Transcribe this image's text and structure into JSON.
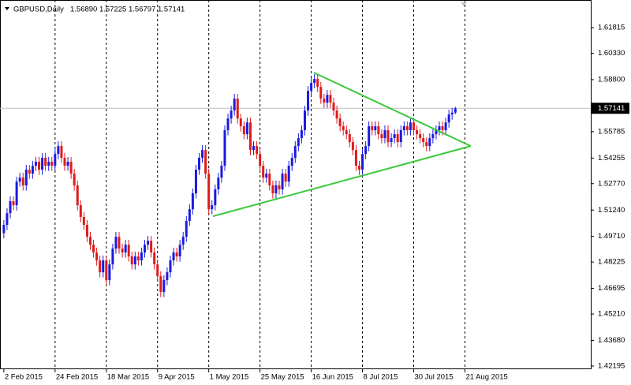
{
  "chart_data": {
    "type": "candlestick",
    "header": {
      "symbol": "GBPUSD,Daily",
      "open": "1.56890",
      "high": "1.57225",
      "low": "1.56797",
      "close": "1.57141"
    },
    "xlim": [
      -1.2,
      183.3
    ],
    "xticks": [
      {
        "value": 0,
        "label": "2 Feb 2015"
      },
      {
        "value": 16,
        "label": "24 Feb 2015"
      },
      {
        "value": 32,
        "label": "18 Mar 2015"
      },
      {
        "value": 48,
        "label": "9 Apr 2015"
      },
      {
        "value": 64,
        "label": "1 May 2015"
      },
      {
        "value": 80,
        "label": "25 May 2015"
      },
      {
        "value": 96,
        "label": "16 Jun 2015"
      },
      {
        "value": 112,
        "label": "8 Jul 2015"
      },
      {
        "value": 128,
        "label": "30 Jul 2015"
      },
      {
        "value": 144,
        "label": "21 Aug 2015"
      }
    ],
    "ylim": [
      1.4201,
      1.6342
    ],
    "yticks": [
      1.61815,
      {
        "value": 1.6033,
        "label": "1.60330"
      },
      {
        "value": 1.588,
        "label": "1.58800"
      },
      1.55785,
      1.54255,
      {
        "value": 1.5277,
        "label": "1.52770"
      },
      {
        "value": 1.5124,
        "label": "1.51240"
      },
      {
        "value": 1.4971,
        "label": "1.49710"
      },
      1.48225,
      1.46695,
      {
        "value": 1.4521,
        "label": "1.45210"
      },
      {
        "value": 1.4368,
        "label": "1.43680"
      },
      1.42195
    ],
    "grid": "x",
    "up_color": "#1a1ae0",
    "down_color": "#e01a1a",
    "current_price": {
      "value": 1.57141,
      "label": "1.57141"
    },
    "open": [
      1.499,
      1.5038,
      1.5106,
      1.5175,
      1.5152,
      1.5289,
      1.5312,
      1.5267,
      1.5358,
      1.5335,
      1.5381,
      1.5404,
      1.5358,
      1.5427,
      1.5381,
      1.5404,
      1.5381,
      1.5449,
      1.5495,
      1.5427,
      1.5381,
      1.5404,
      1.5335,
      1.5267,
      1.5152,
      1.5084,
      1.5038,
      1.4969,
      1.4923,
      1.4878,
      1.4832,
      1.4763,
      1.4832,
      1.4718,
      1.4809,
      1.4901,
      1.4969,
      1.4901,
      1.4878,
      1.4923,
      1.4855,
      1.4809,
      1.4855,
      1.4832,
      1.4878,
      1.4923,
      1.4946,
      1.4878,
      1.4809,
      1.4741,
      1.4649,
      1.4718,
      1.4763,
      1.4832,
      1.4878,
      1.4855,
      1.4923,
      1.4969,
      1.5061,
      1.5129,
      1.5221,
      1.5358,
      1.5427,
      1.5472,
      1.5335,
      1.5129,
      1.5152,
      1.5244,
      1.5312,
      1.5381,
      1.5587,
      1.5655,
      1.5701,
      1.577,
      1.5655,
      1.561,
      1.5564,
      1.5632,
      1.5472,
      1.5495,
      1.5449,
      1.5381,
      1.5312,
      1.5335,
      1.5267,
      1.5221,
      1.5267,
      1.5244,
      1.5335,
      1.5289,
      1.5381,
      1.5427,
      1.5495,
      1.5541,
      1.5587,
      1.5701,
      1.5815,
      1.5861,
      1.5884,
      1.5838,
      1.577,
      1.5747,
      1.5792,
      1.5747,
      1.5701,
      1.5655,
      1.561,
      1.5587,
      1.5564,
      1.5518,
      1.5472,
      1.5381,
      1.5358,
      1.5449,
      1.5495,
      1.561,
      1.5587,
      1.561,
      1.5564,
      1.5541,
      1.5587,
      1.5518,
      1.5541,
      1.5564,
      1.5518,
      1.5587,
      1.561,
      1.5587,
      1.5632,
      1.5587,
      1.5564,
      1.5541,
      1.5518,
      1.5495,
      1.5541,
      1.5564,
      1.5587,
      1.561,
      1.5587,
      1.5632,
      1.5678,
      1.5689
    ],
    "high": [
      1.5066,
      1.5134,
      1.5203,
      1.5203,
      1.5317,
      1.534,
      1.534,
      1.5386,
      1.5386,
      1.5409,
      1.5432,
      1.5432,
      1.5455,
      1.5455,
      1.5432,
      1.5432,
      1.5477,
      1.5523,
      1.5523,
      1.5455,
      1.5432,
      1.5432,
      1.5363,
      1.5295,
      1.518,
      1.5112,
      1.5066,
      1.4997,
      1.4951,
      1.4906,
      1.486,
      1.486,
      1.486,
      1.4837,
      1.4929,
      1.4997,
      1.4997,
      1.4929,
      1.4951,
      1.4951,
      1.4883,
      1.4883,
      1.4883,
      1.4906,
      1.4951,
      1.4974,
      1.4974,
      1.4906,
      1.4837,
      1.4769,
      1.4746,
      1.4791,
      1.486,
      1.4906,
      1.4906,
      1.4951,
      1.4997,
      1.5089,
      1.5157,
      1.5249,
      1.5386,
      1.5455,
      1.55,
      1.55,
      1.5363,
      1.518,
      1.5272,
      1.534,
      1.5409,
      1.5615,
      1.5683,
      1.5729,
      1.5798,
      1.5798,
      1.5683,
      1.5638,
      1.566,
      1.566,
      1.5523,
      1.5523,
      1.5477,
      1.5409,
      1.5363,
      1.5363,
      1.5295,
      1.5295,
      1.5295,
      1.5363,
      1.5363,
      1.5409,
      1.5455,
      1.5523,
      1.5569,
      1.5615,
      1.5729,
      1.5843,
      1.5889,
      1.5912,
      1.5912,
      1.5866,
      1.5798,
      1.582,
      1.582,
      1.5775,
      1.5729,
      1.5683,
      1.5638,
      1.5615,
      1.5592,
      1.5546,
      1.55,
      1.5409,
      1.5477,
      1.5523,
      1.5638,
      1.5638,
      1.5638,
      1.5638,
      1.5592,
      1.5615,
      1.5615,
      1.5569,
      1.5592,
      1.5592,
      1.5615,
      1.5638,
      1.5638,
      1.566,
      1.566,
      1.5615,
      1.5592,
      1.5569,
      1.5546,
      1.5569,
      1.5592,
      1.5615,
      1.5638,
      1.5638,
      1.566,
      1.5706,
      1.5717,
      1.57225
    ],
    "low": [
      1.496,
      1.5008,
      1.5076,
      1.5122,
      1.5122,
      1.5259,
      1.5237,
      1.5237,
      1.5305,
      1.5305,
      1.5351,
      1.5328,
      1.5328,
      1.5351,
      1.5351,
      1.5351,
      1.5351,
      1.5419,
      1.5397,
      1.5351,
      1.5351,
      1.5305,
      1.5237,
      1.5122,
      1.5054,
      1.5008,
      1.4939,
      1.4893,
      1.4848,
      1.4802,
      1.4733,
      1.4733,
      1.4688,
      1.4688,
      1.4779,
      1.4871,
      1.4871,
      1.4848,
      1.4848,
      1.4825,
      1.4779,
      1.4779,
      1.4802,
      1.4802,
      1.4848,
      1.4893,
      1.4848,
      1.4779,
      1.4711,
      1.4619,
      1.4619,
      1.4688,
      1.4733,
      1.4802,
      1.4825,
      1.4825,
      1.4893,
      1.4939,
      1.5031,
      1.5099,
      1.5191,
      1.5328,
      1.5397,
      1.5305,
      1.5099,
      1.5099,
      1.5122,
      1.5214,
      1.5282,
      1.5351,
      1.5557,
      1.5625,
      1.5671,
      1.5625,
      1.558,
      1.5534,
      1.5534,
      1.5442,
      1.5442,
      1.5419,
      1.5351,
      1.5282,
      1.5282,
      1.5237,
      1.5191,
      1.5191,
      1.5214,
      1.5214,
      1.5259,
      1.5259,
      1.5351,
      1.5397,
      1.5465,
      1.5511,
      1.5557,
      1.5671,
      1.5785,
      1.5831,
      1.5808,
      1.574,
      1.5717,
      1.5717,
      1.5717,
      1.5671,
      1.5625,
      1.558,
      1.5557,
      1.5534,
      1.5488,
      1.5442,
      1.5351,
      1.5328,
      1.5328,
      1.5419,
      1.5465,
      1.5557,
      1.5557,
      1.5534,
      1.5511,
      1.5511,
      1.5488,
      1.5488,
      1.5511,
      1.5488,
      1.5488,
      1.5557,
      1.5557,
      1.5557,
      1.5557,
      1.5534,
      1.5511,
      1.5488,
      1.5465,
      1.5465,
      1.5511,
      1.5534,
      1.5557,
      1.5557,
      1.5557,
      1.5602,
      1.5648,
      1.56797
    ],
    "close": [
      1.5038,
      1.5106,
      1.5175,
      1.5152,
      1.5289,
      1.5312,
      1.5267,
      1.5358,
      1.5335,
      1.5381,
      1.5404,
      1.5358,
      1.5427,
      1.5381,
      1.5404,
      1.5381,
      1.5449,
      1.5495,
      1.5427,
      1.5381,
      1.5404,
      1.5335,
      1.5267,
      1.5152,
      1.5084,
      1.5038,
      1.4969,
      1.4923,
      1.4878,
      1.4832,
      1.4763,
      1.4832,
      1.4718,
      1.4809,
      1.4901,
      1.4969,
      1.4901,
      1.4878,
      1.4923,
      1.4855,
      1.4809,
      1.4855,
      1.4832,
      1.4878,
      1.4923,
      1.4946,
      1.4878,
      1.4809,
      1.4741,
      1.4649,
      1.4718,
      1.4763,
      1.4832,
      1.4878,
      1.4855,
      1.4923,
      1.4969,
      1.5061,
      1.5129,
      1.5221,
      1.5358,
      1.5427,
      1.5472,
      1.5335,
      1.5129,
      1.5152,
      1.5244,
      1.5312,
      1.5381,
      1.5587,
      1.5655,
      1.5701,
      1.577,
      1.5655,
      1.561,
      1.5564,
      1.5632,
      1.5472,
      1.5495,
      1.5449,
      1.5381,
      1.5312,
      1.5335,
      1.5267,
      1.5221,
      1.5267,
      1.5244,
      1.5335,
      1.5289,
      1.5381,
      1.5427,
      1.5495,
      1.5541,
      1.5587,
      1.5701,
      1.5815,
      1.5861,
      1.5884,
      1.5838,
      1.577,
      1.5747,
      1.5792,
      1.5747,
      1.5701,
      1.5655,
      1.561,
      1.5587,
      1.5564,
      1.5518,
      1.5472,
      1.5381,
      1.5358,
      1.5449,
      1.5495,
      1.561,
      1.5587,
      1.561,
      1.5564,
      1.5541,
      1.5587,
      1.5518,
      1.5541,
      1.5564,
      1.5518,
      1.5587,
      1.561,
      1.5587,
      1.5632,
      1.5587,
      1.5564,
      1.5541,
      1.5518,
      1.5495,
      1.5541,
      1.5564,
      1.5587,
      1.561,
      1.5587,
      1.5632,
      1.5678,
      1.5689,
      1.57141
    ],
    "trendlines": [
      {
        "color": "#3cc83c",
        "x": [
          65.3,
          145.8
        ],
        "y": [
          1.5088,
          1.5495
        ]
      },
      {
        "color": "#3cc83c",
        "x": [
          96.8,
          145.8
        ],
        "y": [
          1.5921,
          1.5495
        ]
      }
    ]
  }
}
